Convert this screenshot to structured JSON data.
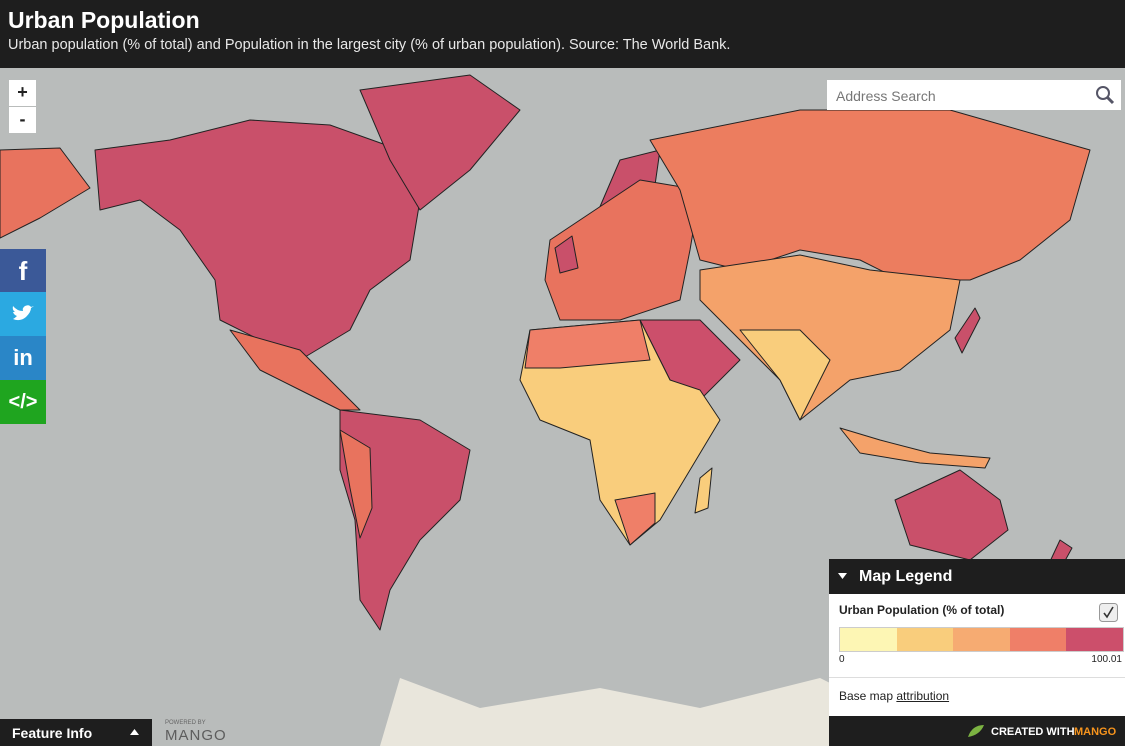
{
  "header": {
    "title": "Urban Population",
    "subtitle": "Urban population (% of total) and Population in the largest city (% of urban population). Source: The World Bank."
  },
  "zoom": {
    "in": "+",
    "out": "-"
  },
  "search": {
    "placeholder": "Address Search"
  },
  "social": {
    "facebook": "f",
    "linkedin": "in",
    "embed": "</>"
  },
  "legend": {
    "title": "Map Legend",
    "layer": "Urban Population (% of total)",
    "min": 0,
    "max": 100.01,
    "colors": [
      "#fdf6b4",
      "#f9cd7c",
      "#f6ab72",
      "#ef7f68",
      "#cc4f6b"
    ],
    "basemap": "Base map",
    "attribution": "attribution"
  },
  "footer": {
    "feature_info": "Feature Info",
    "powered_by": "POWERED BY",
    "mango": "MANGO",
    "created_with": "CREATED WITH",
    "created_brand": "MANGO"
  }
}
